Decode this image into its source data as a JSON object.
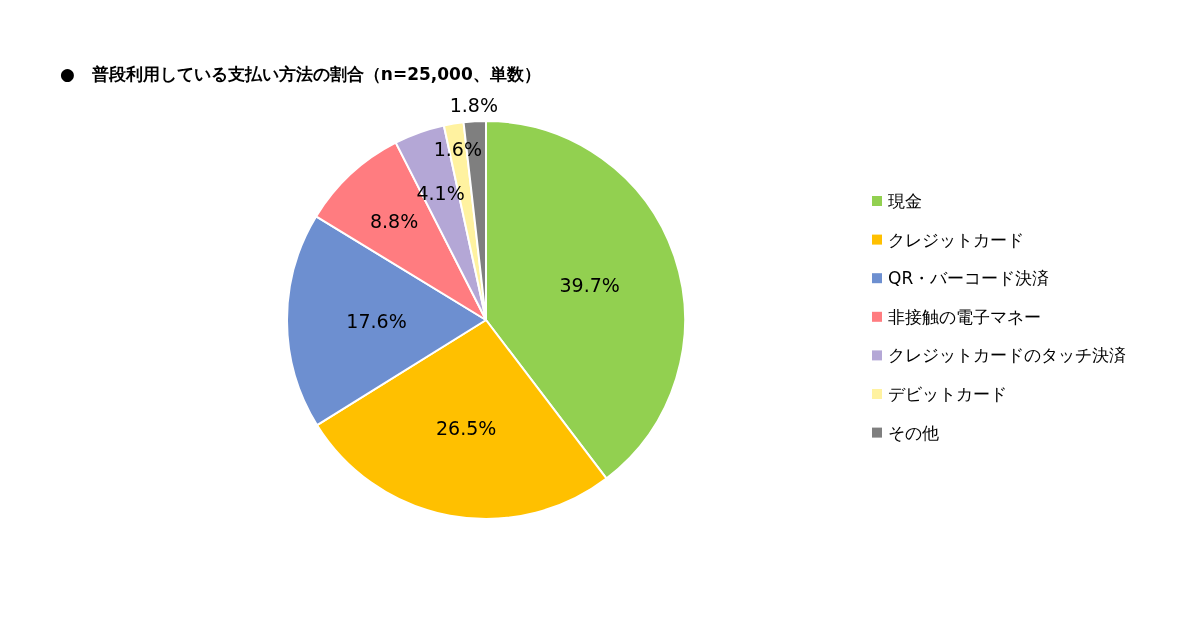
{
  "chart_data": {
    "type": "pie",
    "title": "●　普段利用している支払い方法の割合（n=25,000、単数）",
    "categories": [
      "現金",
      "クレジットカード",
      "QR・バーコード決済",
      "非接触の電子マネー",
      "クレジットカードのタッチ決済",
      "デビットカード",
      "その他"
    ],
    "values": [
      39.7,
      26.5,
      17.6,
      8.8,
      4.1,
      1.6,
      1.8
    ],
    "colors": [
      "#92d050",
      "#ffc000",
      "#6d8fd0",
      "#ff7c80",
      "#b4a7d6",
      "#fff2a0",
      "#7f7f7f"
    ],
    "value_labels": [
      "39.7%",
      "26.5%",
      "17.6%",
      "8.8%",
      "4.1%",
      "1.6%",
      "1.8%"
    ],
    "legend": "right"
  }
}
